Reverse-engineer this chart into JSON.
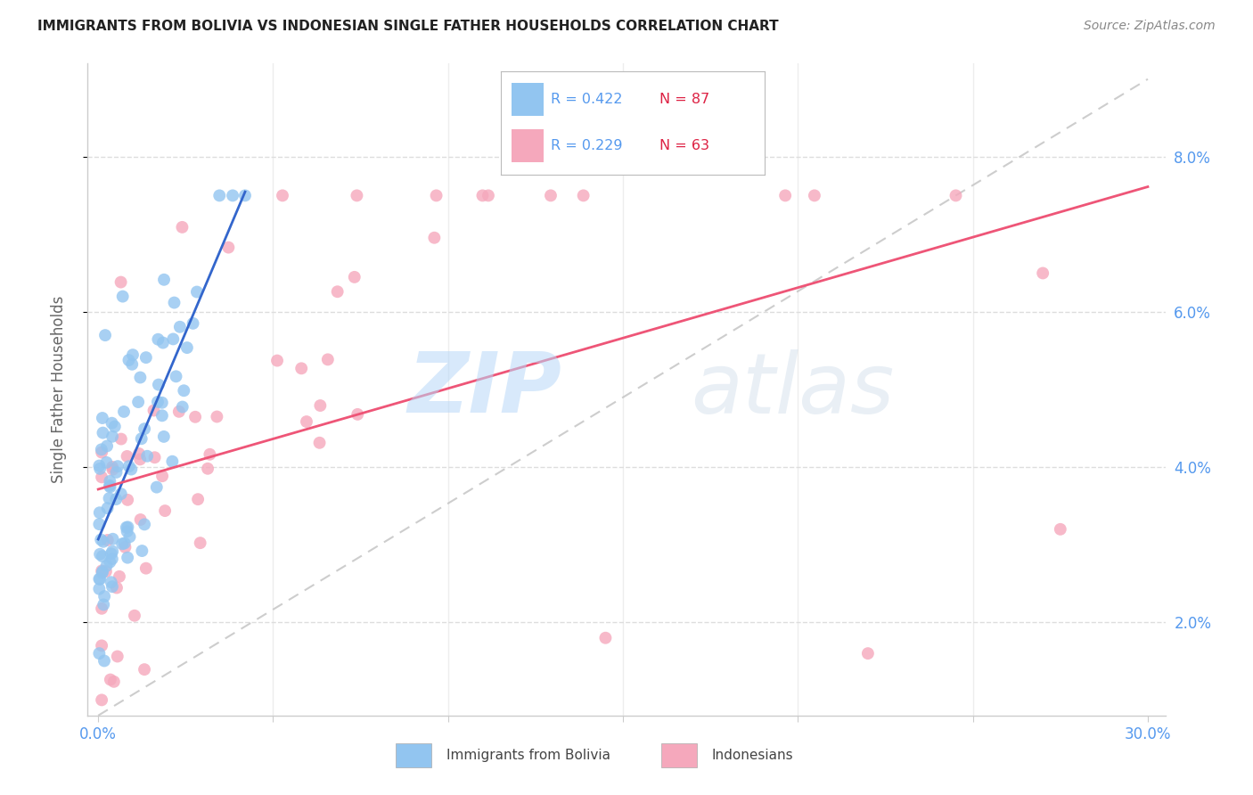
{
  "title": "IMMIGRANTS FROM BOLIVIA VS INDONESIAN SINGLE FATHER HOUSEHOLDS CORRELATION CHART",
  "source": "Source: ZipAtlas.com",
  "ylabel": "Single Father Households",
  "xlim": [
    0.0,
    0.3
  ],
  "ylim": [
    0.008,
    0.092
  ],
  "legend1_r": "R = 0.422",
  "legend1_n": "N = 87",
  "legend2_r": "R = 0.229",
  "legend2_n": "N = 63",
  "color_bolivia": "#92C5F0",
  "color_indonesia": "#F5A8BC",
  "trendline_bolivia_color": "#3366CC",
  "trendline_indonesia_color": "#EE5577",
  "trendline_diagonal_color": "#C8C8C8",
  "watermark_zip": "ZIP",
  "watermark_atlas": "atlas",
  "background_color": "#FFFFFF",
  "grid_color": "#DDDDDD",
  "title_color": "#222222",
  "axis_color": "#5599EE",
  "source_color": "#888888"
}
